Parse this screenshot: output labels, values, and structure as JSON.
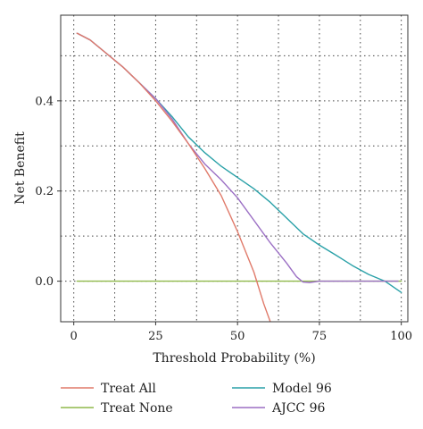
{
  "chart_data": {
    "type": "line",
    "title": "",
    "xlabel": "Threshold Probability (%)",
    "ylabel": "Net Benefit",
    "xlim": [
      -4,
      102
    ],
    "ylim": [
      -0.09,
      0.59
    ],
    "xticks": [
      0,
      25,
      50,
      75,
      100
    ],
    "xtick_labels": [
      "0",
      "25",
      "50",
      "75",
      "100"
    ],
    "yticks": [
      0.0,
      0.2,
      0.4
    ],
    "ytick_labels": [
      "0.0",
      "0.2",
      "0.4"
    ],
    "grid": true,
    "grid_style": "dotted",
    "grid_x": [
      0,
      12.5,
      25,
      37.5,
      50,
      62.5,
      75,
      87.5,
      100
    ],
    "grid_y": [
      0.0,
      0.1,
      0.2,
      0.3,
      0.4,
      0.5
    ],
    "legend_position": "bottom",
    "series": [
      {
        "name": "Treat All",
        "color": "#e07a6a",
        "x": [
          1,
          5,
          10,
          15,
          20,
          25,
          30,
          35,
          40,
          45,
          50,
          55,
          58,
          60
        ],
        "y": [
          0.55,
          0.535,
          0.505,
          0.475,
          0.44,
          0.4,
          0.355,
          0.305,
          0.25,
          0.19,
          0.11,
          0.02,
          -0.05,
          -0.09
        ]
      },
      {
        "name": "Treat None",
        "color": "#8fb84a",
        "x": [
          1,
          100
        ],
        "y": [
          0.0,
          0.0
        ]
      },
      {
        "name": "Model 96",
        "color": "#2aa1a8",
        "x": [
          1,
          5,
          10,
          15,
          20,
          25,
          30,
          35,
          40,
          45,
          50,
          55,
          60,
          65,
          70,
          75,
          80,
          85,
          90,
          95,
          100
        ],
        "y": [
          0.55,
          0.535,
          0.505,
          0.475,
          0.44,
          0.405,
          0.365,
          0.32,
          0.285,
          0.255,
          0.23,
          0.205,
          0.175,
          0.14,
          0.105,
          0.08,
          0.058,
          0.035,
          0.015,
          0.0,
          -0.025
        ]
      },
      {
        "name": "AJCC 96",
        "color": "#9b6fc4",
        "x": [
          1,
          5,
          10,
          15,
          20,
          25,
          30,
          35,
          40,
          45,
          50,
          55,
          60,
          65,
          68,
          70,
          72,
          75,
          80,
          90,
          99
        ],
        "y": [
          0.55,
          0.535,
          0.505,
          0.475,
          0.44,
          0.405,
          0.36,
          0.305,
          0.26,
          0.225,
          0.185,
          0.135,
          0.085,
          0.04,
          0.01,
          -0.002,
          -0.003,
          0.0,
          0.0,
          0.0,
          0.0
        ]
      }
    ]
  }
}
